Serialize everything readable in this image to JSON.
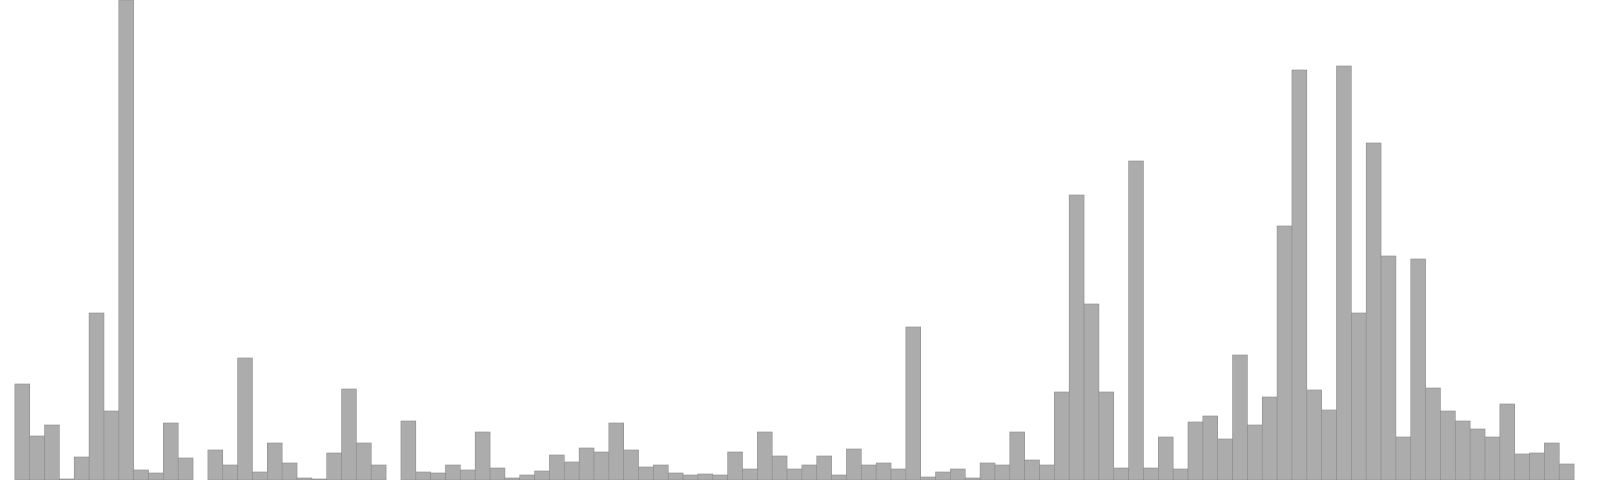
{
  "chart_data": {
    "type": "bar",
    "title": "",
    "xlabel": "",
    "ylabel": "",
    "ylim": [
      0,
      480
    ],
    "grid": false,
    "legend": "none",
    "values": [
      0,
      96,
      44,
      55,
      1,
      23,
      167,
      69,
      480,
      10,
      7,
      57,
      22,
      0,
      30,
      15,
      122,
      8,
      37,
      17,
      2,
      1,
      27,
      91,
      37,
      15,
      0,
      59,
      8,
      7,
      15,
      10,
      48,
      12,
      2,
      5,
      9,
      25,
      18,
      32,
      28,
      57,
      30,
      13,
      15,
      7,
      5,
      6,
      5,
      28,
      11,
      48,
      24,
      11,
      15,
      24,
      5,
      31,
      15,
      17,
      11,
      153,
      3,
      8,
      11,
      2,
      17,
      15,
      48,
      20,
      15,
      88,
      285,
      176,
      88,
      12,
      319,
      12,
      43,
      11,
      58,
      64,
      41,
      125,
      55,
      83,
      254,
      410,
      90,
      70,
      414,
      167,
      337,
      224,
      43,
      221,
      92,
      69,
      59,
      51,
      43,
      76,
      26,
      27,
      37,
      16
    ],
    "colors": {
      "bar_fill": "#acacac",
      "bar_stroke": "#8c8c8c",
      "background": "#ffffff"
    }
  }
}
